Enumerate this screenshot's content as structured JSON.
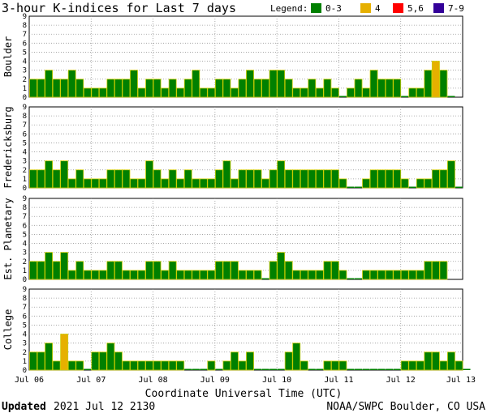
{
  "chart_data": {
    "type": "bar",
    "title": "3-hour K-indices for Last 7 days",
    "legend": {
      "label": "Legend:",
      "placement": "top-right",
      "items": [
        {
          "label": "0-3",
          "color": "#008000"
        },
        {
          "label": "4",
          "color": "#e6b000"
        },
        {
          "label": "5,6",
          "color": "#ff0000"
        },
        {
          "label": "7-9",
          "color": "#330099"
        }
      ]
    },
    "ylim": [
      0,
      9
    ],
    "yticks": [
      "0",
      "1",
      "2",
      "3",
      "4",
      "5",
      "6",
      "7",
      "8",
      "9"
    ],
    "grid": true,
    "xlabel": "Coordinate Universal Time (UTC)",
    "x_tick_labels": [
      "Jul 06",
      "Jul 07",
      "Jul 08",
      "Jul 09",
      "Jul 10",
      "Jul 11",
      "Jul 12",
      "Jul 13"
    ],
    "bars_per_day": 8,
    "series": [
      {
        "name": "Boulder",
        "values": [
          2,
          2,
          3,
          2,
          2,
          3,
          2,
          1,
          1,
          1,
          2,
          2,
          2,
          3,
          1,
          2,
          2,
          1,
          2,
          1,
          2,
          3,
          1,
          1,
          2,
          2,
          1,
          2,
          3,
          2,
          2,
          3,
          3,
          2,
          1,
          1,
          2,
          1,
          2,
          1,
          0,
          1,
          2,
          1,
          3,
          2,
          2,
          2,
          0,
          1,
          1,
          3,
          4,
          3,
          0
        ]
      },
      {
        "name": "Fredericksburg",
        "values": [
          2,
          2,
          3,
          2,
          3,
          1,
          2,
          1,
          1,
          1,
          2,
          2,
          2,
          1,
          1,
          3,
          2,
          1,
          2,
          1,
          2,
          1,
          1,
          1,
          2,
          3,
          1,
          2,
          2,
          2,
          1,
          2,
          3,
          2,
          2,
          2,
          2,
          2,
          2,
          2,
          1,
          0,
          0,
          1,
          2,
          2,
          2,
          2,
          1,
          0,
          1,
          1,
          2,
          2,
          3,
          0
        ]
      },
      {
        "name": "Est. Planetary",
        "values": [
          2,
          2,
          3,
          2,
          3,
          1,
          2,
          1,
          1,
          1,
          2,
          2,
          1,
          1,
          1,
          2,
          2,
          1,
          2,
          1,
          1,
          1,
          1,
          1,
          2,
          2,
          2,
          1,
          1,
          1,
          0,
          2,
          3,
          2,
          1,
          1,
          1,
          1,
          2,
          2,
          1,
          0,
          0,
          1,
          1,
          1,
          1,
          1,
          1,
          1,
          1,
          2,
          2,
          2
        ]
      },
      {
        "name": "College",
        "values": [
          2,
          2,
          3,
          1,
          4,
          1,
          1,
          0,
          2,
          2,
          3,
          2,
          1,
          1,
          1,
          1,
          1,
          1,
          1,
          1,
          0,
          0,
          0,
          1,
          0,
          1,
          2,
          1,
          2,
          0,
          0,
          0,
          0,
          2,
          3,
          1,
          0,
          0,
          1,
          1,
          1,
          0,
          0,
          0,
          0,
          0,
          0,
          0,
          1,
          1,
          1,
          2,
          2,
          1,
          2,
          1,
          0
        ]
      }
    ]
  },
  "footer": {
    "updated_label": "Updated",
    "updated_value": "2021 Jul 12 2130",
    "credit": "NOAA/SWPC Boulder, CO USA"
  }
}
